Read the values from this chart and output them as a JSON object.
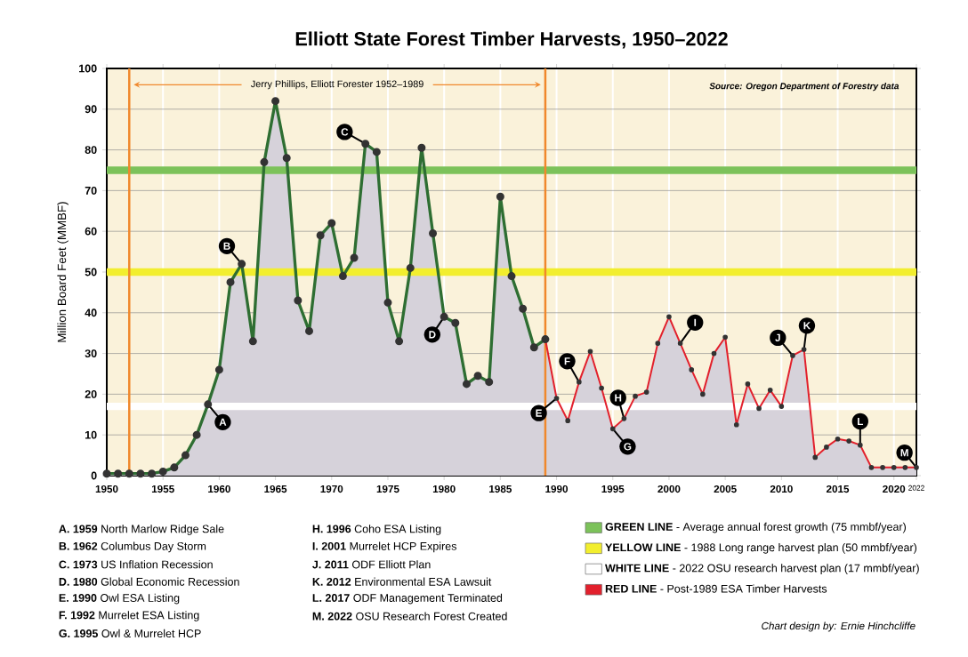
{
  "chart_data": {
    "type": "area",
    "title": "Elliott State Forest Timber Harvests, 1950–2022",
    "ylabel": "Million Board Feet (MMBF)",
    "xlim": [
      1950,
      2022
    ],
    "ylim": [
      0,
      100
    ],
    "xticks": [
      1950,
      1955,
      1960,
      1965,
      1970,
      1975,
      1980,
      1985,
      1990,
      1995,
      2000,
      2005,
      2010,
      2015,
      2020,
      2022
    ],
    "yticks": [
      0,
      10,
      20,
      30,
      40,
      50,
      60,
      70,
      80,
      90,
      100
    ],
    "grid": true,
    "marker": "circle",
    "legend": "bottom",
    "series": [
      {
        "color": "#2e6e32",
        "x": [
          1950,
          1951,
          1952,
          1953,
          1954,
          1955,
          1956,
          1957,
          1958,
          1959,
          1960,
          1961,
          1962,
          1963,
          1964,
          1965,
          1966,
          1967,
          1968,
          1969,
          1970,
          1971,
          1972,
          1973,
          1974,
          1975,
          1976,
          1977,
          1978,
          1979,
          1980,
          1981,
          1982,
          1983,
          1984,
          1985,
          1986,
          1987,
          1988,
          1989
        ],
        "values": [
          0.5,
          0.5,
          0.5,
          0.5,
          0.5,
          1,
          2,
          5,
          10,
          17.5,
          26,
          47.5,
          52,
          33,
          77,
          92,
          78,
          43,
          35.5,
          59,
          62,
          49,
          53.5,
          81.5,
          79.5,
          42.5,
          33,
          51,
          80.5,
          59.5,
          39,
          37.5,
          22.5,
          24.5,
          23,
          68.5,
          49,
          41,
          31.5,
          33.5
        ]
      },
      {
        "name": "**RED LINE** - Post-1989 ESA Timber Harvests",
        "color": "#e2202c",
        "x": [
          1989,
          1990,
          1991,
          1992,
          1993,
          1994,
          1995,
          1996,
          1997,
          1998,
          1999,
          2000,
          2001,
          2002,
          2003,
          2004,
          2005,
          2006,
          2007,
          2008,
          2009,
          2010,
          2011,
          2012,
          2013,
          2014,
          2015,
          2016,
          2017,
          2018,
          2019,
          2020,
          2021,
          2022
        ],
        "values": [
          33.5,
          19,
          13.5,
          23,
          30.5,
          21.5,
          11.5,
          14,
          19.5,
          20.5,
          32.5,
          39,
          32.5,
          26,
          20,
          30,
          34,
          12.5,
          22.5,
          16.5,
          21,
          17,
          29.5,
          31,
          4.5,
          7,
          9,
          8.5,
          7.5,
          2,
          2,
          2,
          2,
          2
        ]
      }
    ],
    "ref_lines": [
      {
        "axis": "y",
        "value": 75,
        "color": "#7cc25a",
        "label": "**GREEN LINE** - Average annual forest growth (75 mmbf/year)"
      },
      {
        "axis": "y",
        "value": 50,
        "color": "#f2ee2e",
        "label": "**YELLOW LINE** - 1988 Long range harvest plan (50 mmbf/year)"
      },
      {
        "axis": "y",
        "value": 17,
        "color": "#ffffff",
        "label": "**WHITE LINE** - 2022 OSU research harvest plan (17 mmbf/year)"
      },
      {
        "axis": "x",
        "value": 1952,
        "color": "#f0882c"
      },
      {
        "axis": "x",
        "value": 1989,
        "color": "#f0882c"
      }
    ],
    "annotations": [
      "Jerry Phillips, Elliott Forester 1952–1989",
      "Source: Oregon Department of Forestry data",
      "**A. 1959** North Marlow Ridge Sale",
      "**B. 1962** Columbus Day Storm",
      "**C. 1973** US Inflation Recession",
      "**D. 1980** Global Economic Recession",
      "**E. 1990** Owl ESA Listing",
      "**F. 1992** Murrelet ESA Listing",
      "**G. 1995** Owl & Murrelet HCP",
      "**H. 1996** Coho ESA Listing",
      "**I. 2001** Murrelet HCP Expires",
      "**J. 2011** ODF Elliott Plan",
      "**K. 2012** Environmental ESA Lawsuit",
      "**L. 2017** ODF Management Terminated",
      "**M. 2022** OSU Research Forest Created",
      "Chart design by: Ernie Hinchcliffe",
      {
        "text": "A",
        "x": 1959,
        "y": 17.5
      },
      {
        "text": "B",
        "x": 1962,
        "y": 52
      },
      {
        "text": "C",
        "x": 1973,
        "y": 81.5
      },
      {
        "text": "D",
        "x": 1980,
        "y": 39
      },
      {
        "text": "E",
        "x": 1990,
        "y": 19
      },
      {
        "text": "F",
        "x": 1992,
        "y": 23
      },
      {
        "text": "G",
        "x": 1995,
        "y": 11.5
      },
      {
        "text": "H",
        "x": 1996,
        "y": 14
      },
      {
        "text": "I",
        "x": 2001,
        "y": 32.5
      },
      {
        "text": "J",
        "x": 2011,
        "y": 29.5
      },
      {
        "text": "K",
        "x": 2012,
        "y": 31
      },
      {
        "text": "L",
        "x": 2017,
        "y": 7.5
      },
      {
        "text": "M",
        "x": 2022,
        "y": 2
      }
    ]
  }
}
